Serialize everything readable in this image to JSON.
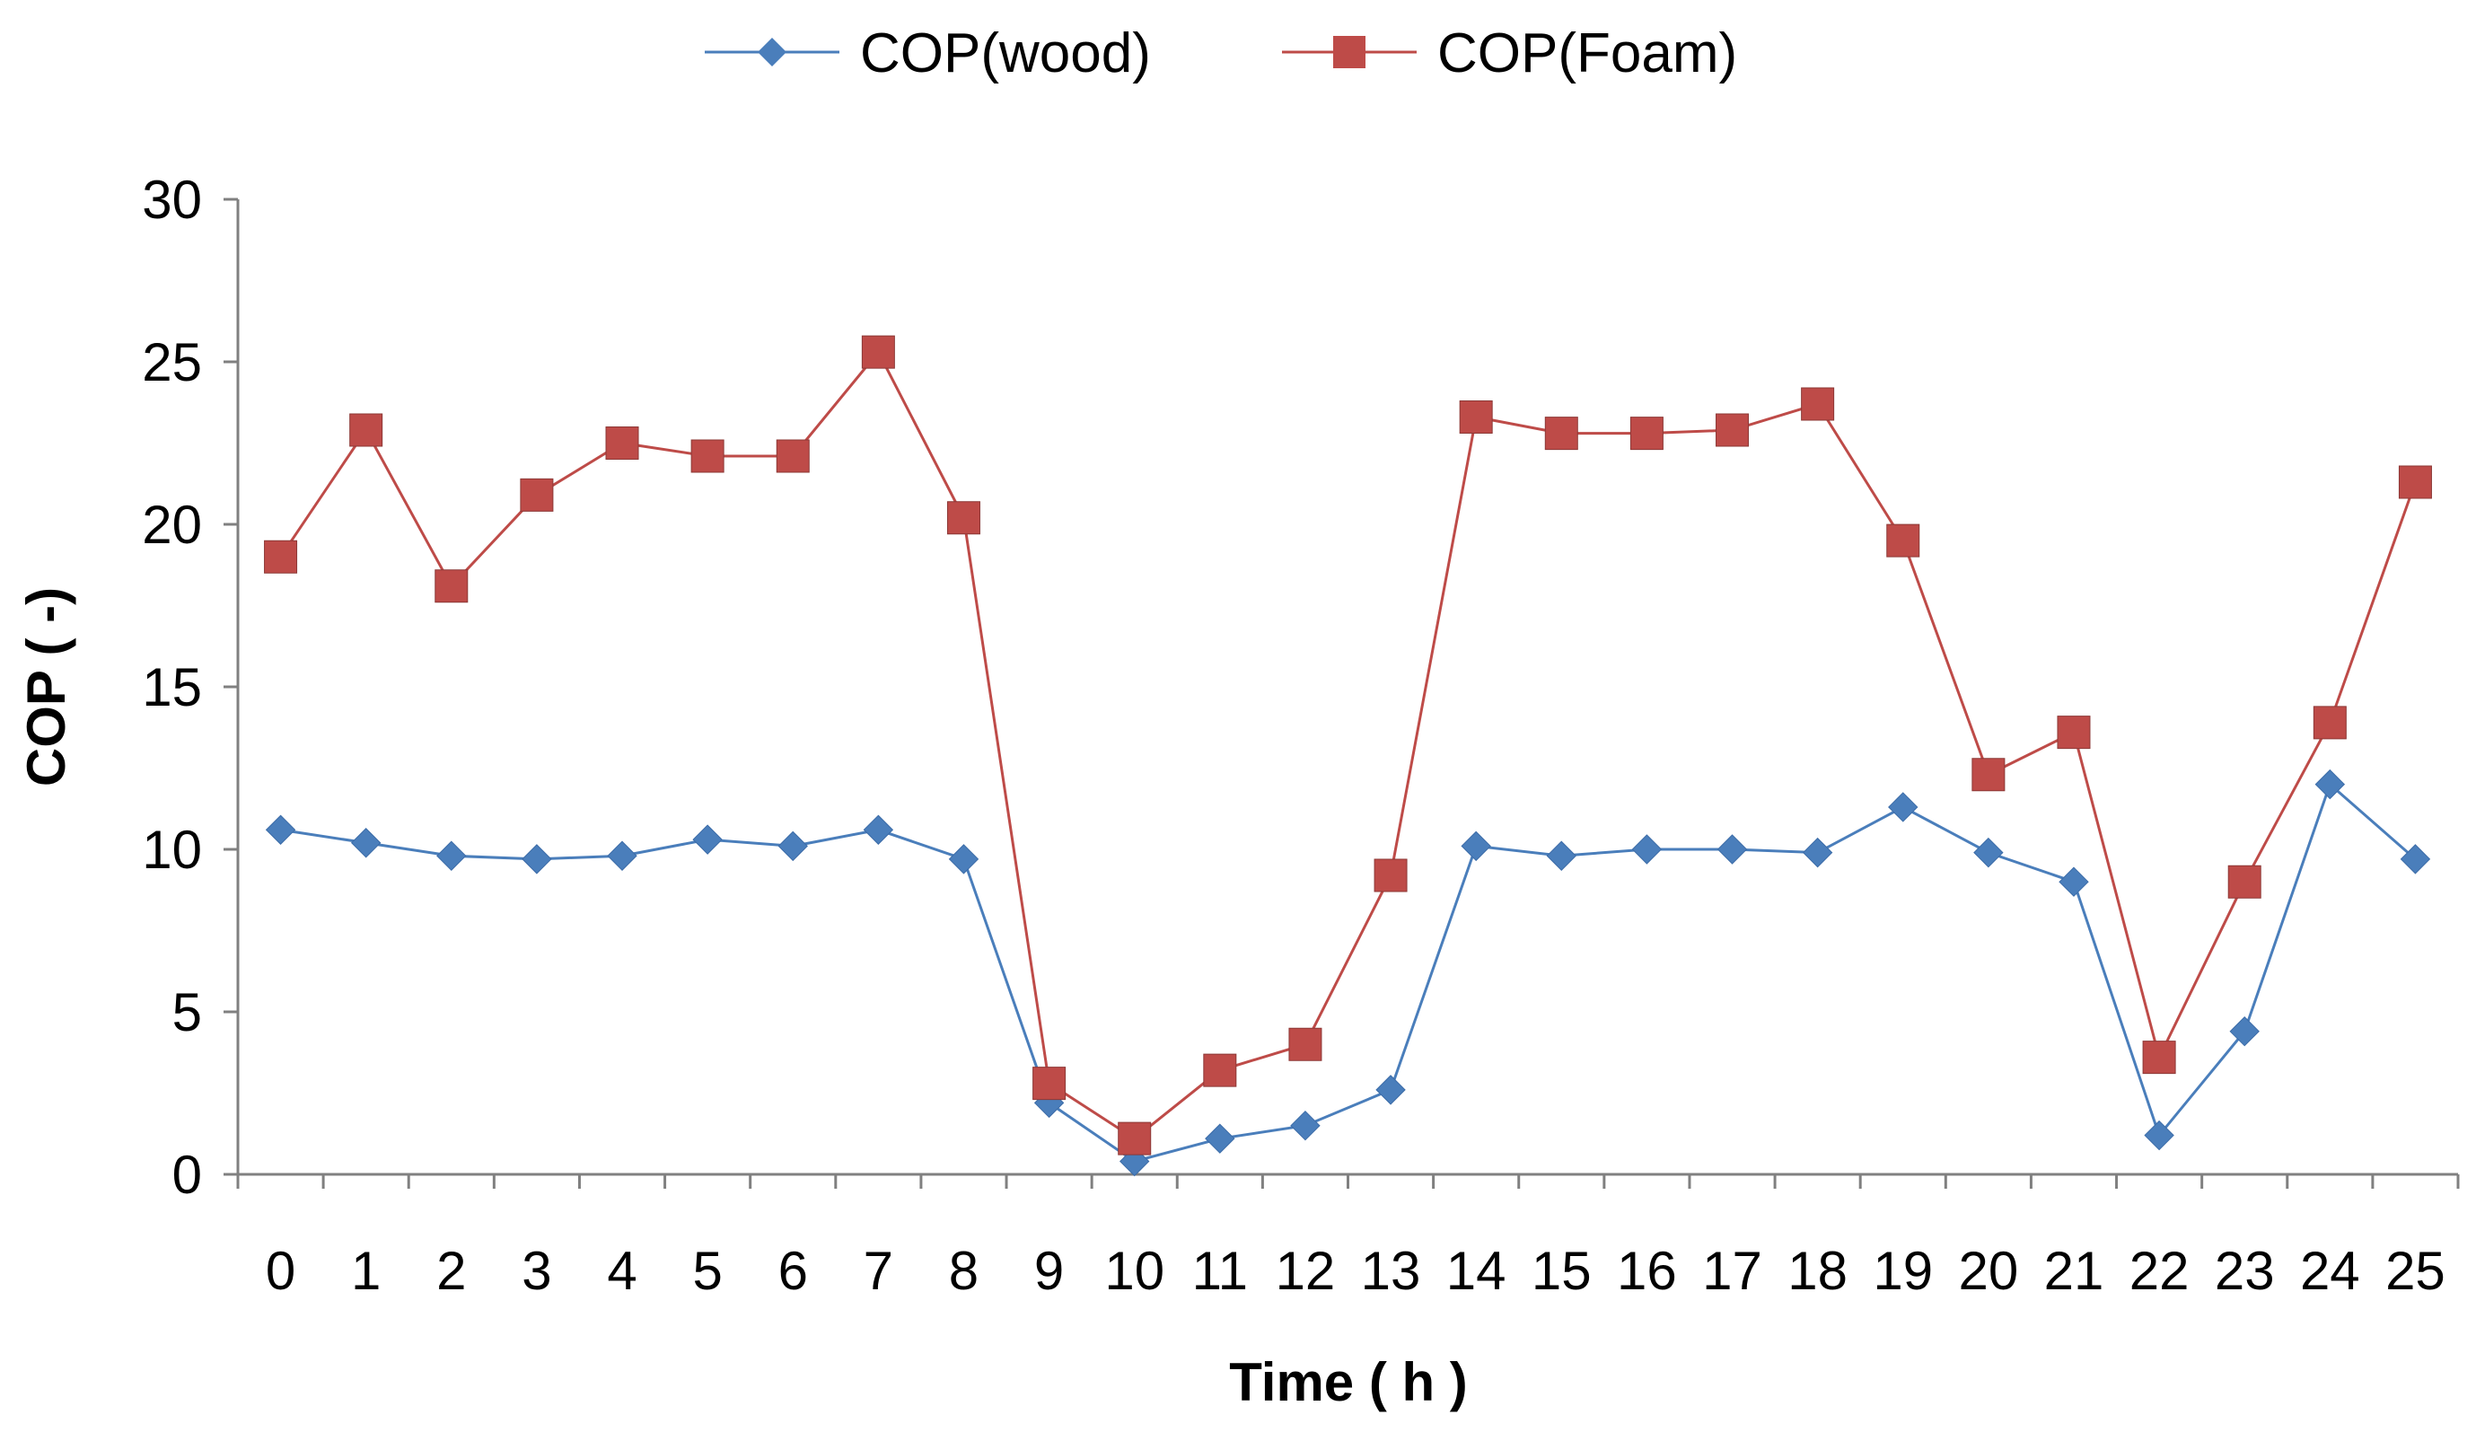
{
  "chart_data": {
    "type": "line",
    "title": "",
    "xlabel": "Time ( h )",
    "ylabel": "COP ( -)",
    "x": [
      0,
      1,
      2,
      3,
      4,
      5,
      6,
      7,
      8,
      9,
      10,
      11,
      12,
      13,
      14,
      15,
      16,
      17,
      18,
      19,
      20,
      21,
      22,
      23,
      24,
      25
    ],
    "ylim": [
      0,
      30
    ],
    "yticks": [
      0,
      5,
      10,
      15,
      20,
      25,
      30
    ],
    "grid": false,
    "legend_position": "top-center",
    "series": [
      {
        "name": "COP(wood)",
        "color": "#4A7EBB",
        "marker": "diamond",
        "values": [
          10.6,
          10.2,
          9.8,
          9.7,
          9.8,
          10.3,
          10.1,
          10.6,
          9.7,
          2.2,
          0.4,
          1.1,
          1.5,
          2.6,
          10.1,
          9.8,
          10.0,
          10.0,
          9.9,
          11.3,
          9.9,
          9.0,
          1.2,
          4.4,
          12.0,
          9.7
        ]
      },
      {
        "name": "COP(Foam)",
        "color": "#BE4B48",
        "marker": "square",
        "values": [
          19.0,
          22.9,
          18.1,
          20.9,
          22.5,
          22.1,
          22.1,
          25.3,
          20.2,
          2.8,
          1.1,
          3.2,
          4.0,
          9.2,
          23.3,
          22.8,
          22.8,
          22.9,
          23.7,
          19.5,
          12.3,
          13.6,
          3.6,
          9.0,
          13.9,
          21.3
        ]
      }
    ]
  }
}
